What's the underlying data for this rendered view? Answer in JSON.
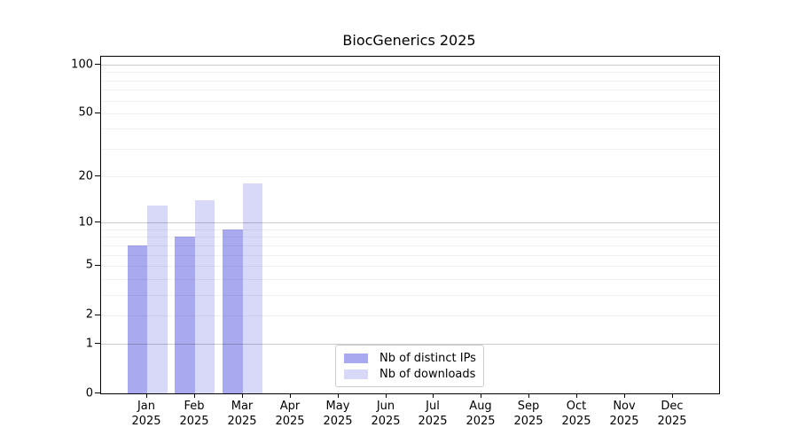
{
  "chart_data": {
    "type": "bar",
    "title": "BiocGenerics 2025",
    "x_tick_months": [
      "Jan",
      "Feb",
      "Mar",
      "Apr",
      "May",
      "Jun",
      "Jul",
      "Aug",
      "Sep",
      "Oct",
      "Nov",
      "Dec"
    ],
    "x_tick_year": "2025",
    "y_ticks": [
      0,
      1,
      2,
      5,
      10,
      20,
      50,
      100
    ],
    "y_scale": "log10(1+y)",
    "ylim": [
      0,
      112
    ],
    "grid": true,
    "y_major_gridlines": [
      1,
      10,
      100
    ],
    "y_minor_gridlines": [
      2,
      3,
      4,
      5,
      6,
      7,
      8,
      9,
      20,
      30,
      40,
      50,
      60,
      70,
      80,
      90
    ],
    "legend_position": "bottom-center",
    "series": [
      {
        "name": "Nb of distinct IPs",
        "color": "#a9a9f0",
        "values": [
          7,
          8,
          9,
          null,
          null,
          null,
          null,
          null,
          null,
          null,
          null,
          null
        ]
      },
      {
        "name": "Nb of downloads",
        "color": "#d8d8f8",
        "values": [
          13,
          14,
          18,
          null,
          null,
          null,
          null,
          null,
          null,
          null,
          null,
          null
        ]
      }
    ]
  },
  "legend": {
    "items": [
      {
        "label": "Nb of distinct IPs",
        "color": "#a9a9f0"
      },
      {
        "label": "Nb of downloads",
        "color": "#d8d8f8"
      }
    ]
  },
  "colors": {
    "axis": "#000000",
    "major_grid": "rgba(0,0,0,0.20)",
    "minor_grid": "rgba(0,0,0,0.055)",
    "background": "#ffffff"
  }
}
